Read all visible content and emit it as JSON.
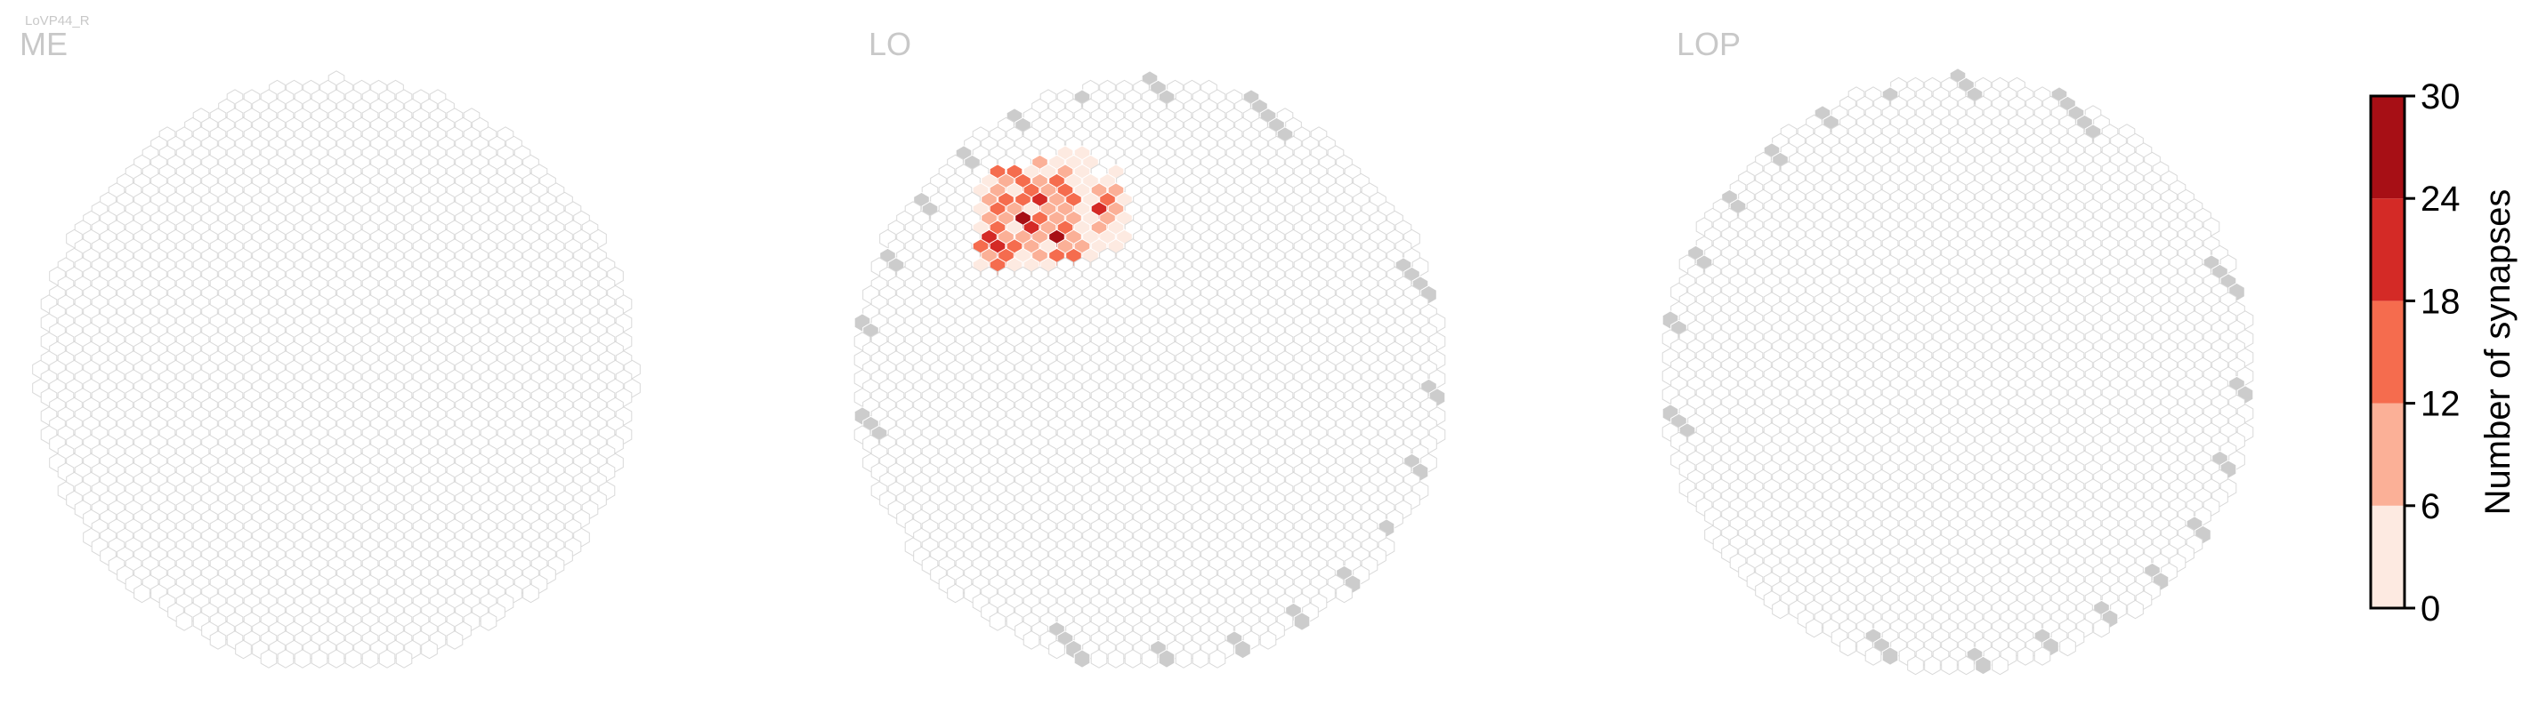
{
  "figure": {
    "cell_type": "LoVP44_R",
    "panel_titles": [
      "ME",
      "LO",
      "LOP"
    ]
  },
  "colors": {
    "empty_hex_stroke": "#d9d9d9",
    "edge_hex_fill": "#cccccc",
    "title_color": "#c8c8c8",
    "colorbar_bins": [
      "#fdeae1",
      "#fbb097",
      "#f56c4e",
      "#d42a26",
      "#a70f15"
    ]
  },
  "chart_data": [
    {
      "type": "heatmap",
      "title": "ME",
      "hex_rows": 31,
      "filled_cells": []
    },
    {
      "type": "heatmap",
      "title": "LO",
      "hex_rows": 32,
      "filled_cells": [
        {
          "r": 8,
          "c": 13,
          "value": 2
        },
        {
          "r": 8,
          "c": 15,
          "value": 3
        },
        {
          "r": 9,
          "c": 10,
          "value": 11
        },
        {
          "r": 9,
          "c": 12,
          "value": 3
        },
        {
          "r": 9,
          "c": 14,
          "value": 2
        },
        {
          "r": 9,
          "c": 16,
          "value": 2
        },
        {
          "r": 10,
          "c": 5,
          "value": 17
        },
        {
          "r": 10,
          "c": 7,
          "value": 15
        },
        {
          "r": 10,
          "c": 9,
          "value": 2
        },
        {
          "r": 10,
          "c": 11,
          "value": 4
        },
        {
          "r": 10,
          "c": 13,
          "value": 8
        },
        {
          "r": 10,
          "c": 15,
          "value": 2
        },
        {
          "r": 10,
          "c": 19,
          "value": 2
        },
        {
          "r": 11,
          "c": 4,
          "value": 3
        },
        {
          "r": 11,
          "c": 6,
          "value": 9
        },
        {
          "r": 11,
          "c": 8,
          "value": 13
        },
        {
          "r": 11,
          "c": 10,
          "value": 6
        },
        {
          "r": 11,
          "c": 12,
          "value": 17
        },
        {
          "r": 11,
          "c": 14,
          "value": 4
        },
        {
          "r": 11,
          "c": 16,
          "value": 3
        },
        {
          "r": 11,
          "c": 18,
          "value": 2
        },
        {
          "r": 12,
          "c": 3,
          "value": 2
        },
        {
          "r": 12,
          "c": 5,
          "value": 9
        },
        {
          "r": 12,
          "c": 7,
          "value": 4
        },
        {
          "r": 12,
          "c": 9,
          "value": 15
        },
        {
          "r": 12,
          "c": 11,
          "value": 9
        },
        {
          "r": 12,
          "c": 13,
          "value": 14
        },
        {
          "r": 12,
          "c": 15,
          "value": 5
        },
        {
          "r": 12,
          "c": 17,
          "value": 11
        },
        {
          "r": 12,
          "c": 19,
          "value": 9
        },
        {
          "r": 13,
          "c": 4,
          "value": 10
        },
        {
          "r": 13,
          "c": 6,
          "value": 15
        },
        {
          "r": 13,
          "c": 8,
          "value": 17
        },
        {
          "r": 13,
          "c": 10,
          "value": 19
        },
        {
          "r": 13,
          "c": 12,
          "value": 8
        },
        {
          "r": 13,
          "c": 14,
          "value": 15
        },
        {
          "r": 13,
          "c": 16,
          "value": 4
        },
        {
          "r": 13,
          "c": 18,
          "value": 15
        },
        {
          "r": 13,
          "c": 20,
          "value": 3
        },
        {
          "r": 14,
          "c": 3,
          "value": 4
        },
        {
          "r": 14,
          "c": 5,
          "value": 13
        },
        {
          "r": 14,
          "c": 7,
          "value": 9
        },
        {
          "r": 14,
          "c": 9,
          "value": 3
        },
        {
          "r": 14,
          "c": 11,
          "value": 11
        },
        {
          "r": 14,
          "c": 13,
          "value": 7
        },
        {
          "r": 14,
          "c": 15,
          "value": 3
        },
        {
          "r": 14,
          "c": 17,
          "value": 21
        },
        {
          "r": 14,
          "c": 19,
          "value": 7
        },
        {
          "r": 15,
          "c": 4,
          "value": 7
        },
        {
          "r": 15,
          "c": 6,
          "value": 9
        },
        {
          "r": 15,
          "c": 8,
          "value": 28
        },
        {
          "r": 15,
          "c": 10,
          "value": 12
        },
        {
          "r": 15,
          "c": 12,
          "value": 9
        },
        {
          "r": 15,
          "c": 14,
          "value": 10
        },
        {
          "r": 15,
          "c": 16,
          "value": 5
        },
        {
          "r": 15,
          "c": 18,
          "value": 8
        },
        {
          "r": 15,
          "c": 20,
          "value": 3
        },
        {
          "r": 16,
          "c": 3,
          "value": 3
        },
        {
          "r": 16,
          "c": 5,
          "value": 14
        },
        {
          "r": 16,
          "c": 7,
          "value": 5
        },
        {
          "r": 16,
          "c": 9,
          "value": 22
        },
        {
          "r": 16,
          "c": 11,
          "value": 7
        },
        {
          "r": 16,
          "c": 13,
          "value": 17
        },
        {
          "r": 16,
          "c": 15,
          "value": 4
        },
        {
          "r": 16,
          "c": 17,
          "value": 9
        },
        {
          "r": 16,
          "c": 19,
          "value": 5
        },
        {
          "r": 17,
          "c": 4,
          "value": 19
        },
        {
          "r": 17,
          "c": 6,
          "value": 10
        },
        {
          "r": 17,
          "c": 8,
          "value": 8
        },
        {
          "r": 17,
          "c": 10,
          "value": 6
        },
        {
          "r": 17,
          "c": 12,
          "value": 25
        },
        {
          "r": 17,
          "c": 14,
          "value": 8
        },
        {
          "r": 17,
          "c": 16,
          "value": 3
        },
        {
          "r": 17,
          "c": 18,
          "value": 4
        },
        {
          "r": 17,
          "c": 20,
          "value": 2
        },
        {
          "r": 18,
          "c": 3,
          "value": 13
        },
        {
          "r": 18,
          "c": 5,
          "value": 22
        },
        {
          "r": 18,
          "c": 7,
          "value": 13
        },
        {
          "r": 18,
          "c": 9,
          "value": 9
        },
        {
          "r": 18,
          "c": 11,
          "value": 4
        },
        {
          "r": 18,
          "c": 13,
          "value": 11
        },
        {
          "r": 18,
          "c": 15,
          "value": 9
        },
        {
          "r": 18,
          "c": 17,
          "value": 3
        },
        {
          "r": 18,
          "c": 19,
          "value": 2
        },
        {
          "r": 19,
          "c": 4,
          "value": 8
        },
        {
          "r": 19,
          "c": 6,
          "value": 12
        },
        {
          "r": 19,
          "c": 8,
          "value": 4
        },
        {
          "r": 19,
          "c": 10,
          "value": 9
        },
        {
          "r": 19,
          "c": 12,
          "value": 14
        },
        {
          "r": 19,
          "c": 14,
          "value": 15
        },
        {
          "r": 19,
          "c": 16,
          "value": 2
        },
        {
          "r": 20,
          "c": 3,
          "value": 3
        },
        {
          "r": 20,
          "c": 5,
          "value": 16
        },
        {
          "r": 20,
          "c": 7,
          "value": 3
        },
        {
          "r": 20,
          "c": 9,
          "value": 5
        },
        {
          "r": 20,
          "c": 11,
          "value": 2
        }
      ]
    },
    {
      "type": "heatmap",
      "title": "LOP",
      "hex_rows": 32,
      "filled_cells": []
    }
  ],
  "colorbar": {
    "label": "Number of synapses",
    "ticks": [
      0,
      6,
      12,
      18,
      24,
      30
    ],
    "vmin": 0,
    "vmax": 30
  }
}
